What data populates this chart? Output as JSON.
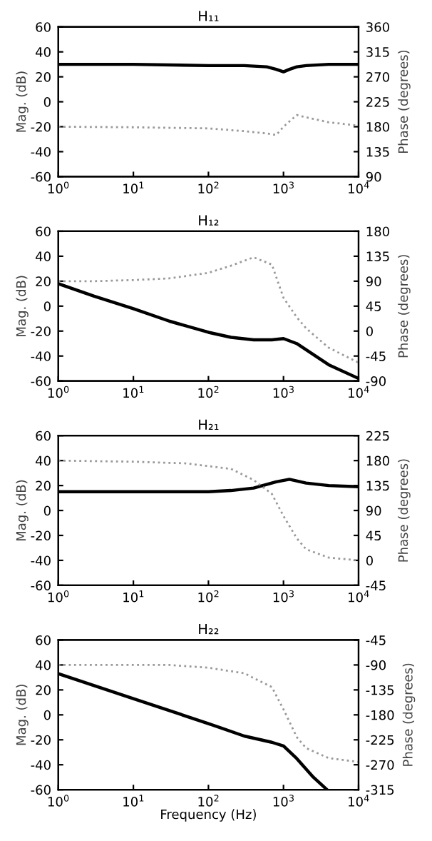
{
  "chart_data": [
    {
      "type": "line",
      "title": "H₁₁",
      "ylabel": "Mag. (dB)",
      "y2label": "Phase (degrees)",
      "log": "x",
      "grid": false,
      "xlim": [
        1,
        10000
      ],
      "xticks": [
        {
          "value": 1,
          "label": "10$^{0}$"
        },
        {
          "value": 10,
          "label": "10$^{1}$"
        },
        {
          "value": 100,
          "label": "10$^{2}$"
        },
        {
          "value": 1000,
          "label": "10$^{3}$"
        },
        {
          "value": 10000,
          "label": "10$^{4}$"
        }
      ],
      "ylim": [
        -60,
        60
      ],
      "yticks": [
        -60,
        -40,
        -20,
        0,
        20,
        40,
        60
      ],
      "y2lim": [
        90,
        360
      ],
      "y2ticks": [
        90,
        135,
        180,
        225,
        270,
        315,
        360
      ],
      "series": [
        {
          "color": "#000000",
          "line_style": "solid",
          "x": [
            1,
            10,
            100,
            300,
            600,
            800,
            1000,
            1200,
            1500,
            2000,
            4000,
            10000
          ],
          "values": [
            30,
            30,
            29,
            29,
            28,
            26,
            24,
            26,
            28,
            29,
            30,
            30
          ]
        },
        {
          "axis": "y2",
          "color": "#999999",
          "line_style": "dotted",
          "x": [
            1,
            10,
            100,
            300,
            600,
            800,
            1000,
            1500,
            2000,
            4000,
            10000
          ],
          "values": [
            180,
            179,
            177,
            172,
            168,
            165,
            180,
            201,
            197,
            188,
            182
          ]
        }
      ]
    },
    {
      "type": "line",
      "title": "H₁₂",
      "ylabel": "Mag. (dB)",
      "y2label": "Phase (degrees)",
      "log": "x",
      "grid": false,
      "xlim": [
        1,
        10000
      ],
      "xticks": [
        {
          "value": 1,
          "label": "10$^{0}$"
        },
        {
          "value": 10,
          "label": "10$^{1}$"
        },
        {
          "value": 100,
          "label": "10$^{2}$"
        },
        {
          "value": 1000,
          "label": "10$^{3}$"
        },
        {
          "value": 10000,
          "label": "10$^{4}$"
        }
      ],
      "ylim": [
        -60,
        60
      ],
      "yticks": [
        -60,
        -40,
        -20,
        0,
        20,
        40,
        60
      ],
      "y2lim": [
        -90,
        180
      ],
      "y2ticks": [
        -90,
        -45,
        0,
        45,
        90,
        135,
        180
      ],
      "series": [
        {
          "color": "#000000",
          "line_style": "solid",
          "x": [
            1,
            3,
            10,
            30,
            100,
            200,
            400,
            700,
            1000,
            1500,
            2000,
            4000,
            10000
          ],
          "values": [
            18,
            8,
            -2,
            -12,
            -21,
            -25,
            -27,
            -27,
            -26,
            -30,
            -35,
            -47,
            -58
          ]
        },
        {
          "axis": "y2",
          "color": "#999999",
          "line_style": "dotted",
          "x": [
            1,
            3,
            10,
            30,
            100,
            200,
            400,
            700,
            1000,
            1500,
            2000,
            4000,
            10000
          ],
          "values": [
            90,
            90,
            92,
            95,
            105,
            118,
            133,
            120,
            60,
            25,
            5,
            -30,
            -57
          ]
        }
      ]
    },
    {
      "type": "line",
      "title": "H₂₁",
      "ylabel": "Mag. (dB)",
      "y2label": "Phase (degrees)",
      "log": "x",
      "grid": false,
      "xlim": [
        1,
        10000
      ],
      "xticks": [
        {
          "value": 1,
          "label": "10$^{0}$"
        },
        {
          "value": 10,
          "label": "10$^{1}$"
        },
        {
          "value": 100,
          "label": "10$^{2}$"
        },
        {
          "value": 1000,
          "label": "10$^{3}$"
        },
        {
          "value": 10000,
          "label": "10$^{4}$"
        }
      ],
      "ylim": [
        -60,
        60
      ],
      "yticks": [
        -60,
        -40,
        -20,
        0,
        20,
        40,
        60
      ],
      "y2lim": [
        -45,
        225
      ],
      "y2ticks": [
        -45,
        0,
        45,
        90,
        135,
        180,
        225
      ],
      "series": [
        {
          "color": "#000000",
          "line_style": "solid",
          "x": [
            1,
            10,
            100,
            200,
            400,
            800,
            1200,
            2000,
            4000,
            10000
          ],
          "values": [
            15,
            15,
            15,
            16,
            18,
            23,
            25,
            22,
            20,
            19
          ]
        },
        {
          "axis": "y2",
          "color": "#999999",
          "line_style": "dotted",
          "x": [
            1,
            10,
            50,
            200,
            400,
            700,
            1000,
            1500,
            2000,
            4000,
            10000
          ],
          "values": [
            180,
            178,
            175,
            165,
            145,
            120,
            80,
            40,
            20,
            5,
            0
          ]
        }
      ]
    },
    {
      "type": "line",
      "title": "H₂₂",
      "xlabel": "Frequency (Hz)",
      "ylabel": "Mag. (dB)",
      "y2label": "Phase (degrees)",
      "log": "x",
      "grid": false,
      "xlim": [
        1,
        10000
      ],
      "xticks": [
        {
          "value": 1,
          "label": "10$^{0}$"
        },
        {
          "value": 10,
          "label": "10$^{1}$"
        },
        {
          "value": 100,
          "label": "10$^{2}$"
        },
        {
          "value": 1000,
          "label": "10$^{3}$"
        },
        {
          "value": 10000,
          "label": "10$^{4}$"
        }
      ],
      "ylim": [
        -60,
        60
      ],
      "yticks": [
        -60,
        -40,
        -20,
        0,
        20,
        40,
        60
      ],
      "y2lim": [
        -315,
        -45
      ],
      "y2ticks": [
        -315,
        -270,
        -225,
        -180,
        -135,
        -90,
        -45
      ],
      "series": [
        {
          "color": "#000000",
          "line_style": "solid",
          "x": [
            1,
            10,
            100,
            300,
            700,
            1000,
            1500,
            2500,
            3800
          ],
          "values": [
            33,
            13,
            -7,
            -17,
            -22,
            -25,
            -35,
            -50,
            -60
          ]
        },
        {
          "axis": "y2",
          "color": "#999999",
          "line_style": "dotted",
          "x": [
            1,
            30,
            100,
            300,
            700,
            1000,
            1500,
            2000,
            4000,
            10000
          ],
          "values": [
            -90,
            -90,
            -95,
            -105,
            -130,
            -170,
            -220,
            -240,
            -258,
            -265
          ]
        }
      ]
    }
  ]
}
